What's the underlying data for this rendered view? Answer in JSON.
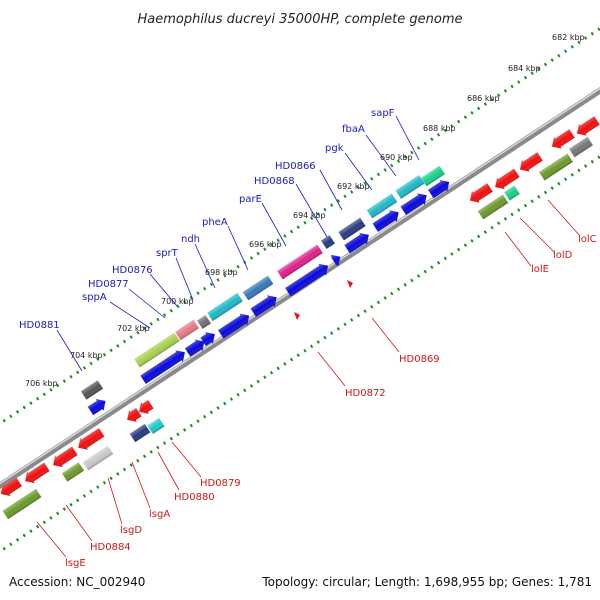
{
  "title": "Haemophilus ducreyi 35000HP, complete genome",
  "accession": "Accession: NC_002940",
  "summary": "Topology: circular; Length: 1,698,955 bp; Genes: 1,781",
  "colors": {
    "label_blue": "#1a1ac8",
    "label_red": "#d01818",
    "tick_green": "#1e8c1e",
    "backbone": "#a0a0a0"
  },
  "kbp_labels": [
    "682 kbp",
    "684 kbp",
    "686 kbp",
    "688 kbp",
    "690 kbp",
    "692 kbp",
    "694 kbp",
    "696 kbp",
    "698 kbp",
    "700 kbp",
    "702 kbp",
    "704 kbp",
    "706 kbp"
  ],
  "genes_top": [
    "sapF",
    "fbaA",
    "pgk",
    "HD0866",
    "HD0868",
    "parE",
    "pheA",
    "ndh",
    "sprT",
    "HD0876",
    "HD0877",
    "sppA",
    "HD0881"
  ],
  "genes_bottom": [
    "HD0869",
    "HD0872",
    "lolC",
    "lolD",
    "lolE",
    "HD0879",
    "HD0880",
    "lsgA",
    "lsgD",
    "HD0884",
    "lsgE"
  ]
}
